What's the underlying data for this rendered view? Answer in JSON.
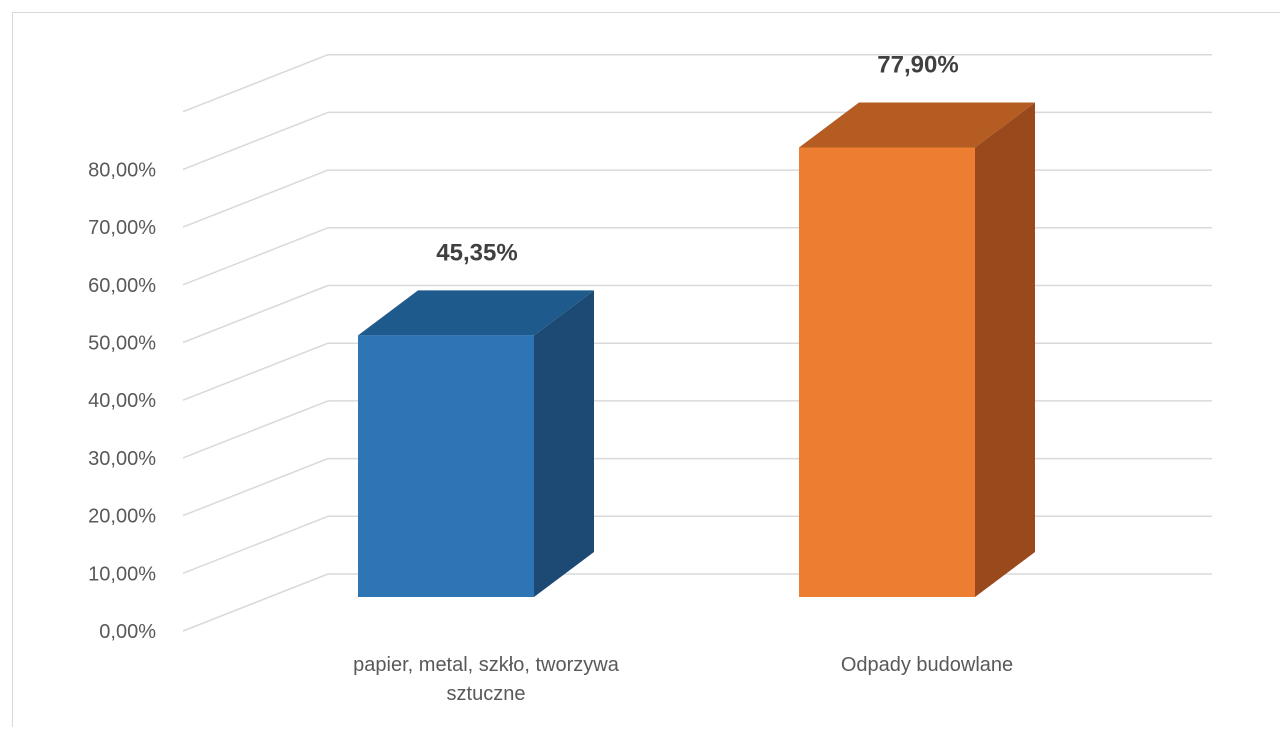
{
  "chart_data": {
    "type": "bar",
    "title": "",
    "xlabel": "",
    "ylabel": "",
    "categories": [
      "papier, metal, szkło, tworzywa sztuczne",
      "Odpady budowlane"
    ],
    "category_lines": [
      [
        "papier, metal, szkło, tworzywa",
        "sztuczne"
      ],
      [
        "Odpady budowlane"
      ]
    ],
    "values": [
      45.35,
      77.9
    ],
    "data_labels": [
      "45,35%",
      "77,90%"
    ],
    "ylim": [
      0,
      80
    ],
    "yticks": [
      0,
      10,
      20,
      30,
      40,
      50,
      60,
      70,
      80
    ],
    "ytick_labels": [
      "0,00%",
      "10,00%",
      "20,00%",
      "30,00%",
      "40,00%",
      "50,00%",
      "60,00%",
      "70,00%",
      "80,00%"
    ],
    "grid": true,
    "legend": "none",
    "colors": {
      "bar1_front": "#2e75b6",
      "bar1_top": "#1f5a8c",
      "bar1_side": "#1d4a75",
      "bar2_front": "#ed7d31",
      "bar2_top": "#b45c22",
      "bar2_side": "#99491c",
      "grid": "#d9d9d9"
    }
  }
}
